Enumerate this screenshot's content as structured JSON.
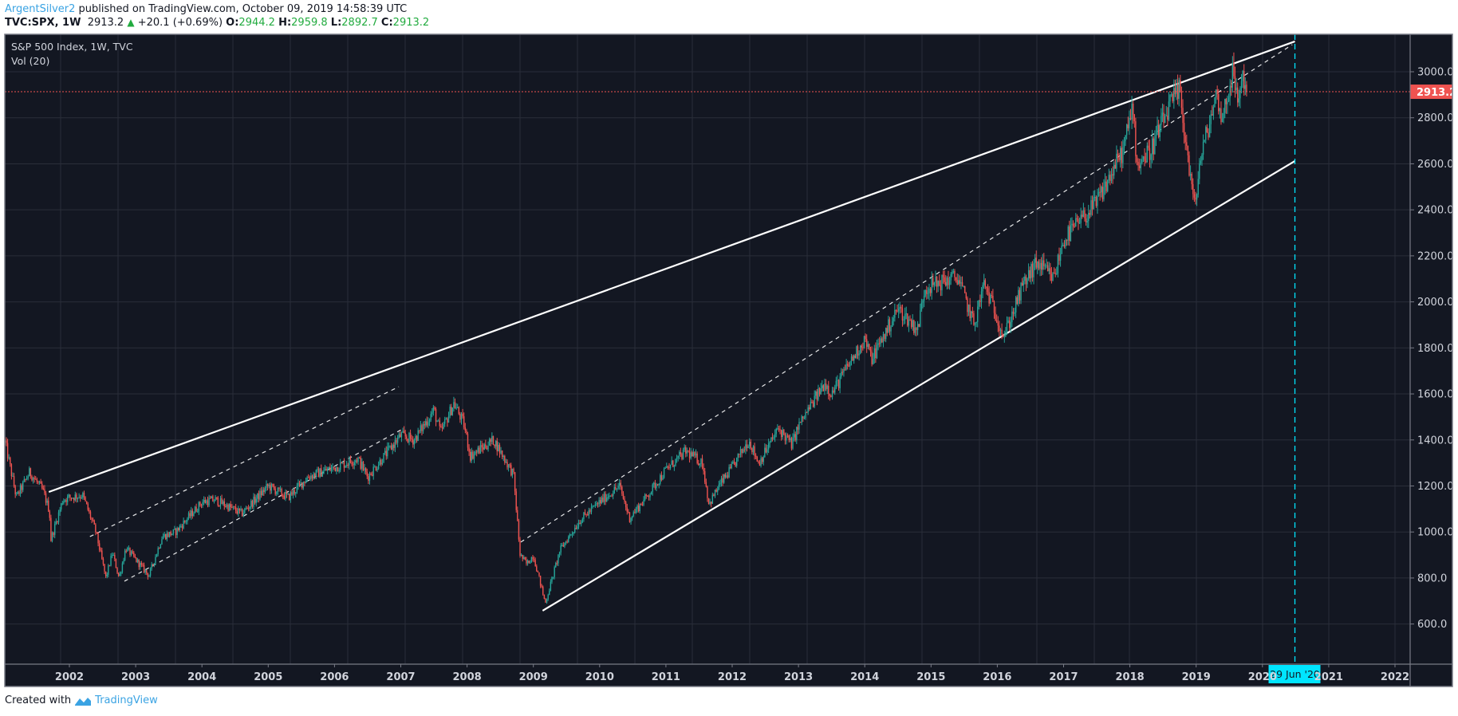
{
  "header": {
    "author": "ArgentSilver2",
    "published": "published on TradingView.com, October 09, 2019 14:58:39 UTC",
    "symbol": "TVC:SPX, 1W",
    "last": "2913.2",
    "change": "+20.1 (+0.69%)",
    "o_label": "O:",
    "o": "2944.2",
    "h_label": "H:",
    "h": "2959.8",
    "l_label": "L:",
    "l": "2892.7",
    "c_label": "C:",
    "c": "2913.2"
  },
  "legend": {
    "title": "S&P 500 Index, 1W, TVC",
    "volume": "Vol (20)"
  },
  "footer": {
    "created": "Created with",
    "brand": "TradingView"
  },
  "colors": {
    "background": "#131722",
    "grid": "#2a2e39",
    "up": "#26a69a",
    "down": "#ef5350",
    "last_price": "#ef5350",
    "crosshair": "#00e5ff",
    "drawing": "#ffffff"
  },
  "chart_data": {
    "type": "candlestick",
    "title": "S&P 500 Index, 1W, TVC",
    "interval": "1W",
    "ylim": [
      400,
      3180
    ],
    "xlim": [
      2001.03,
      2022.85
    ],
    "y_ticks": [
      "600.0",
      "800.0",
      "1000.0",
      "1200.0",
      "1400.0",
      "1600.0",
      "1800.0",
      "2000.0",
      "2200.0",
      "2400.0",
      "2600.0",
      "2800.0",
      "3000.0"
    ],
    "x_ticks": [
      "2002",
      "2003",
      "2004",
      "2005",
      "2006",
      "2007",
      "2008",
      "2009",
      "2010",
      "2011",
      "2012",
      "2013",
      "2014",
      "2015",
      "2016",
      "2017",
      "2018",
      "2019",
      "2020",
      "2021",
      "2022"
    ],
    "last_price_label": "2913.2",
    "last_price": 2913.2,
    "crosshair_date_label": "29 Jun '20",
    "crosshair_date": 2020.49,
    "last_bar": {
      "open": 2944.2,
      "high": 2959.8,
      "low": 2892.7,
      "close": 2913.2
    },
    "approx_close_path": [
      [
        2001.03,
        1390
      ],
      [
        2001.2,
        1150
      ],
      [
        2001.4,
        1260
      ],
      [
        2001.6,
        1180
      ],
      [
        2001.7,
        1090
      ],
      [
        2001.72,
        965
      ],
      [
        2001.9,
        1140
      ],
      [
        2002.0,
        1150
      ],
      [
        2002.2,
        1160
      ],
      [
        2002.4,
        1000
      ],
      [
        2002.55,
        800
      ],
      [
        2002.65,
        910
      ],
      [
        2002.75,
        800
      ],
      [
        2002.85,
        930
      ],
      [
        2003.0,
        880
      ],
      [
        2003.2,
        810
      ],
      [
        2003.4,
        980
      ],
      [
        2003.6,
        1000
      ],
      [
        2004.0,
        1130
      ],
      [
        2004.2,
        1140
      ],
      [
        2004.6,
        1080
      ],
      [
        2005.0,
        1200
      ],
      [
        2005.3,
        1150
      ],
      [
        2005.6,
        1240
      ],
      [
        2006.0,
        1280
      ],
      [
        2006.35,
        1320
      ],
      [
        2006.5,
        1240
      ],
      [
        2007.0,
        1420
      ],
      [
        2007.2,
        1400
      ],
      [
        2007.5,
        1530
      ],
      [
        2007.6,
        1430
      ],
      [
        2007.8,
        1560
      ],
      [
        2007.95,
        1470
      ],
      [
        2008.05,
        1330
      ],
      [
        2008.4,
        1400
      ],
      [
        2008.7,
        1250
      ],
      [
        2008.8,
        900
      ],
      [
        2008.9,
        860
      ],
      [
        2009.0,
        900
      ],
      [
        2009.18,
        690
      ],
      [
        2009.4,
        920
      ],
      [
        2009.7,
        1050
      ],
      [
        2010.0,
        1130
      ],
      [
        2010.3,
        1200
      ],
      [
        2010.45,
        1060
      ],
      [
        2010.7,
        1150
      ],
      [
        2011.0,
        1270
      ],
      [
        2011.3,
        1350
      ],
      [
        2011.55,
        1300
      ],
      [
        2011.65,
        1120
      ],
      [
        2011.8,
        1200
      ],
      [
        2012.0,
        1280
      ],
      [
        2012.25,
        1400
      ],
      [
        2012.4,
        1300
      ],
      [
        2012.7,
        1450
      ],
      [
        2012.9,
        1380
      ],
      [
        2013.0,
        1460
      ],
      [
        2013.4,
        1650
      ],
      [
        2013.5,
        1600
      ],
      [
        2013.7,
        1700
      ],
      [
        2014.0,
        1840
      ],
      [
        2014.1,
        1750
      ],
      [
        2014.5,
        1970
      ],
      [
        2014.8,
        1880
      ],
      [
        2014.9,
        2060
      ],
      [
        2015.4,
        2110
      ],
      [
        2015.65,
        1900
      ],
      [
        2015.8,
        2080
      ],
      [
        2016.0,
        1930
      ],
      [
        2016.1,
        1850
      ],
      [
        2016.4,
        2080
      ],
      [
        2016.6,
        2170
      ],
      [
        2016.85,
        2100
      ],
      [
        2017.0,
        2270
      ],
      [
        2017.5,
        2430
      ],
      [
        2017.9,
        2660
      ],
      [
        2018.05,
        2860
      ],
      [
        2018.1,
        2600
      ],
      [
        2018.3,
        2650
      ],
      [
        2018.6,
        2850
      ],
      [
        2018.75,
        2920
      ],
      [
        2018.85,
        2680
      ],
      [
        2018.98,
        2400
      ],
      [
        2019.05,
        2600
      ],
      [
        2019.3,
        2900
      ],
      [
        2019.4,
        2800
      ],
      [
        2019.55,
        3000
      ],
      [
        2019.62,
        2870
      ],
      [
        2019.7,
        2980
      ],
      [
        2019.77,
        2913.2
      ]
    ],
    "drawings": [
      {
        "name": "upper-trendline",
        "style": "solid",
        "from": [
          2001.69,
          1174
        ],
        "to": [
          2020.49,
          3132
        ]
      },
      {
        "name": "lower-trendline",
        "style": "solid",
        "from": [
          2009.14,
          658
        ],
        "to": [
          2020.49,
          2612
        ]
      },
      {
        "name": "channel-2009-upper-dashed",
        "style": "dashed",
        "from": [
          2008.81,
          956
        ],
        "to": [
          2020.45,
          3118
        ]
      },
      {
        "name": "channel-2003-upper-dashed",
        "style": "dashed",
        "from": [
          2002.31,
          980
        ],
        "to": [
          2006.97,
          1631
        ]
      },
      {
        "name": "channel-2003-lower-dashed",
        "style": "dashed",
        "from": [
          2002.83,
          786
        ],
        "to": [
          2007.03,
          1448
        ]
      }
    ]
  }
}
